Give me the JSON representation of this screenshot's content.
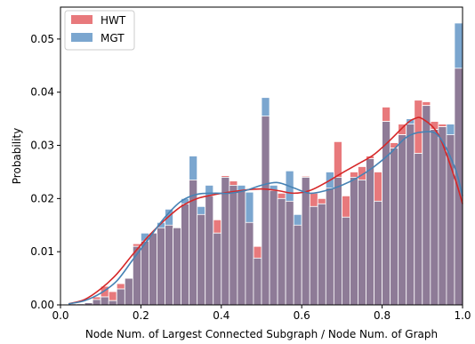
{
  "chart_data": {
    "type": "bar",
    "title": "",
    "xlabel": "Node Num. of Largest Connected Subgraph / Node Num. of Graph",
    "ylabel": "Probability",
    "xlim": [
      0.0,
      1.0
    ],
    "ylim": [
      0.0,
      0.056
    ],
    "xticks": [
      "0.0",
      "0.2",
      "0.4",
      "0.6",
      "0.8",
      "1.0"
    ],
    "yticks": [
      "0.00",
      "0.01",
      "0.02",
      "0.03",
      "0.04",
      "0.05"
    ],
    "bin_width": 0.02,
    "bin_starts": [
      0.0,
      0.02,
      0.04,
      0.06,
      0.08,
      0.1,
      0.12,
      0.14,
      0.16,
      0.18,
      0.2,
      0.22,
      0.24,
      0.26,
      0.28,
      0.3,
      0.32,
      0.34,
      0.36,
      0.38,
      0.4,
      0.42,
      0.44,
      0.46,
      0.48,
      0.5,
      0.52,
      0.54,
      0.56,
      0.58,
      0.6,
      0.62,
      0.64,
      0.66,
      0.68,
      0.7,
      0.72,
      0.74,
      0.76,
      0.78,
      0.8,
      0.82,
      0.84,
      0.86,
      0.88,
      0.9,
      0.92,
      0.94,
      0.96,
      0.98
    ],
    "legend": {
      "position": "upper-left"
    },
    "overlap_color": "#8e7b97",
    "series": [
      {
        "name": "HWT",
        "color": "#e8797c",
        "values": [
          0.0001,
          0.0003,
          0.0002,
          0.0005,
          0.0015,
          0.0035,
          0.0025,
          0.004,
          0.005,
          0.0115,
          0.012,
          0.0135,
          0.0145,
          0.015,
          0.0145,
          0.019,
          0.0235,
          0.017,
          0.0205,
          0.016,
          0.0243,
          0.0233,
          0.0215,
          0.0155,
          0.011,
          0.0355,
          0.0215,
          0.021,
          0.0195,
          0.015,
          0.0242,
          0.021,
          0.02,
          0.022,
          0.0307,
          0.0205,
          0.025,
          0.026,
          0.028,
          0.025,
          0.0372,
          0.0305,
          0.034,
          0.034,
          0.0385,
          0.0382,
          0.0345,
          0.034,
          0.032,
          0.0445
        ]
      },
      {
        "name": "MGT",
        "color": "#7ba6cf",
        "values": [
          0.0001,
          0.0002,
          0.0003,
          0.0004,
          0.001,
          0.0015,
          0.0008,
          0.003,
          0.005,
          0.011,
          0.0135,
          0.0135,
          0.0155,
          0.018,
          0.0145,
          0.02,
          0.028,
          0.0185,
          0.0225,
          0.0135,
          0.024,
          0.0225,
          0.0225,
          0.0212,
          0.0088,
          0.039,
          0.0225,
          0.02,
          0.0252,
          0.017,
          0.024,
          0.0185,
          0.019,
          0.025,
          0.024,
          0.0165,
          0.024,
          0.0235,
          0.0275,
          0.0195,
          0.0345,
          0.0295,
          0.032,
          0.035,
          0.0285,
          0.0375,
          0.033,
          0.0335,
          0.034,
          0.053
        ]
      }
    ],
    "kde": [
      {
        "name": "HWT",
        "color": "#d62728",
        "x": [
          0.02,
          0.06,
          0.1,
          0.14,
          0.18,
          0.22,
          0.26,
          0.3,
          0.34,
          0.38,
          0.42,
          0.46,
          0.5,
          0.54,
          0.58,
          0.62,
          0.66,
          0.7,
          0.74,
          0.78,
          0.82,
          0.86,
          0.88,
          0.9,
          0.94,
          0.98,
          1.0
        ],
        "y": [
          0.0002,
          0.001,
          0.003,
          0.0058,
          0.0095,
          0.013,
          0.016,
          0.0185,
          0.02,
          0.0207,
          0.0212,
          0.0216,
          0.0218,
          0.0215,
          0.021,
          0.0215,
          0.023,
          0.0248,
          0.0265,
          0.0283,
          0.031,
          0.034,
          0.035,
          0.035,
          0.032,
          0.024,
          0.019
        ]
      },
      {
        "name": "MGT",
        "color": "#4682b4",
        "x": [
          0.02,
          0.06,
          0.1,
          0.14,
          0.18,
          0.22,
          0.26,
          0.3,
          0.34,
          0.38,
          0.42,
          0.46,
          0.5,
          0.54,
          0.58,
          0.62,
          0.66,
          0.7,
          0.74,
          0.78,
          0.82,
          0.86,
          0.9,
          0.94,
          0.98,
          1.0
        ],
        "y": [
          0.0002,
          0.0008,
          0.0022,
          0.0045,
          0.0085,
          0.0125,
          0.0165,
          0.0195,
          0.0208,
          0.021,
          0.021,
          0.0215,
          0.0225,
          0.023,
          0.022,
          0.021,
          0.0215,
          0.0225,
          0.024,
          0.026,
          0.0285,
          0.0315,
          0.0325,
          0.0318,
          0.026,
          0.0205
        ]
      }
    ]
  }
}
